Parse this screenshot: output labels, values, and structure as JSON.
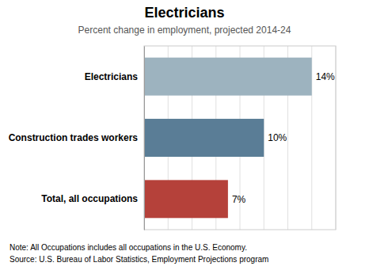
{
  "chart_data": {
    "type": "bar",
    "orientation": "horizontal",
    "title": "Electricians",
    "subtitle": "Percent change in employment, projected 2014-24",
    "categories": [
      "Total, all occupations",
      "Construction trades workers",
      "Electricians"
    ],
    "values": [
      7,
      10,
      14
    ],
    "value_labels": [
      "7%",
      "10%",
      "14%"
    ],
    "data_labels": true,
    "colors": [
      "#b5413a",
      "#5a7d96",
      "#9db3bf"
    ],
    "xlim": [
      0,
      16
    ],
    "xticks": [
      0,
      2,
      4,
      6,
      8,
      10,
      12,
      14,
      16
    ],
    "grid": true,
    "tick_labels": "y",
    "annotations": [
      "Note: All Occupations includes all occupations in the U.S. Economy.",
      "Source: U.S. Bureau of Labor Statistics, Employment Projections program"
    ]
  }
}
